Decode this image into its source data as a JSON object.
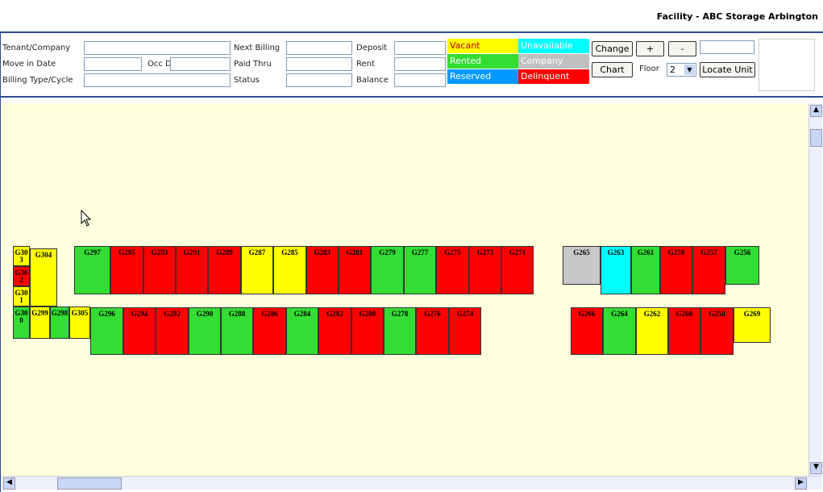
{
  "header": {
    "title": "Facility - ABC Storage Arbington"
  },
  "form": {
    "fields": [
      "Tenant/Company",
      "Move in Date",
      "Occ Days",
      "Billing Type/Cycle",
      "Next Billing",
      "Paid Thru",
      "Status",
      "Deposit",
      "Rent",
      "Balance"
    ],
    "legend": [
      {
        "label": "Vacant",
        "color": "#ffff00"
      },
      {
        "label": "Unavailable",
        "color": "#00ffff"
      },
      {
        "label": "Rented",
        "color": "#33dd33"
      },
      {
        "label": "Company",
        "color": "#c0c0c0"
      },
      {
        "label": "Reserved",
        "color": "#0099ff"
      },
      {
        "label": "Delinquent",
        "color": "#ff0000"
      }
    ],
    "buttons": [
      "Change",
      "+",
      "-",
      "Chart",
      "Locate Unit"
    ],
    "floor_label": "Floor",
    "floor_value": "2"
  },
  "units": [
    {
      "label": "G297",
      "color": "#33dd33"
    },
    {
      "label": "G295",
      "color": "#ff0000"
    },
    {
      "label": "G293",
      "color": "#ff0000"
    },
    {
      "label": "G291",
      "color": "#ff0000"
    },
    {
      "label": "G289",
      "color": "#ff0000"
    },
    {
      "label": "G287",
      "color": "#ffff00"
    },
    {
      "label": "G285",
      "color": "#ffff00"
    },
    {
      "label": "G283",
      "color": "#ff0000"
    },
    {
      "label": "G281",
      "color": "#ff0000"
    },
    {
      "label": "G279",
      "color": "#33dd33"
    },
    {
      "label": "G277",
      "color": "#33dd33"
    },
    {
      "label": "G275",
      "color": "#ff0000"
    },
    {
      "label": "G273",
      "color": "#ff0000"
    },
    {
      "label": "G271",
      "color": "#ff0000"
    },
    {
      "label": "G265",
      "color": "#c8c8c8"
    },
    {
      "label": "G263",
      "color": "#00ffff"
    },
    {
      "label": "G261",
      "color": "#33dd33"
    },
    {
      "label": "G259",
      "color": "#ff0000"
    },
    {
      "label": "G257",
      "color": "#ff0000"
    },
    {
      "label": "G256",
      "color": "#33dd33"
    },
    {
      "label": "G296",
      "color": "#33dd33"
    },
    {
      "label": "G294",
      "color": "#ff0000"
    },
    {
      "label": "G292",
      "color": "#ff0000"
    },
    {
      "label": "G290",
      "color": "#33dd33"
    },
    {
      "label": "G288",
      "color": "#33dd33"
    },
    {
      "label": "G286",
      "color": "#ff0000"
    },
    {
      "label": "G284",
      "color": "#33dd33"
    },
    {
      "label": "G282",
      "color": "#ff0000"
    },
    {
      "label": "G280",
      "color": "#ff0000"
    },
    {
      "label": "G278",
      "color": "#33dd33"
    },
    {
      "label": "G276",
      "color": "#ff0000"
    },
    {
      "label": "G274",
      "color": "#ff0000"
    },
    {
      "label": "G266",
      "color": "#ff0000"
    },
    {
      "label": "G264",
      "color": "#33dd33"
    },
    {
      "label": "G262",
      "color": "#ffff00"
    },
    {
      "label": "G260",
      "color": "#ff0000"
    },
    {
      "label": "G258",
      "color": "#ff0000"
    },
    {
      "label": "G269",
      "color": "#ffff00"
    },
    {
      "label": "G303",
      "color": "#ffff00"
    },
    {
      "label": "G302",
      "color": "#ff0000"
    },
    {
      "label": "G301",
      "color": "#ffff00"
    },
    {
      "label": "G300",
      "color": "#33dd33"
    },
    {
      "label": "G304",
      "color": "#ffff00"
    },
    {
      "label": "G299",
      "color": "#ffff00"
    },
    {
      "label": "G298",
      "color": "#33dd33"
    },
    {
      "label": "G305",
      "color": "#ffff00"
    }
  ]
}
